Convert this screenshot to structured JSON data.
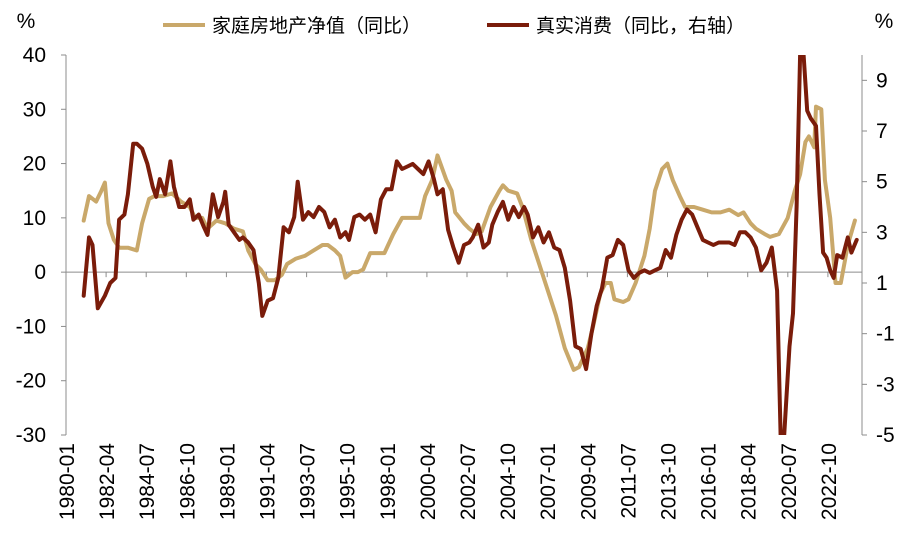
{
  "chart_data": {
    "type": "line",
    "left_axis_unit": "%",
    "right_axis_unit": "%",
    "ylim_left": [
      -30,
      40
    ],
    "ylim_right": [
      -5,
      10
    ],
    "yticks_left": [
      40,
      30,
      20,
      10,
      0,
      -10,
      -20,
      -30
    ],
    "yticks_right": [
      9,
      7,
      5,
      3,
      1,
      -1,
      -3,
      -5
    ],
    "xticks": [
      "1980-01",
      "1982-04",
      "1984-07",
      "1986-10",
      "1989-01",
      "1991-04",
      "1993-07",
      "1995-10",
      "1998-01",
      "2000-04",
      "2002-07",
      "2004-10",
      "2007-01",
      "2009-04",
      "2011-07",
      "2013-10",
      "2016-01",
      "2018-04",
      "2020-07",
      "2022-10"
    ],
    "colors": {
      "net_worth": "#C9A86A",
      "consumption": "#7A1C0A"
    },
    "series": [
      {
        "name": "家庭房地产净值（同比）",
        "axis": "left",
        "points": [
          [
            1981.0,
            9.5
          ],
          [
            1981.3,
            14
          ],
          [
            1981.7,
            13
          ],
          [
            1982.0,
            15
          ],
          [
            1982.2,
            16.5
          ],
          [
            1982.4,
            9
          ],
          [
            1982.7,
            6
          ],
          [
            1983.0,
            4.5
          ],
          [
            1983.5,
            4.5
          ],
          [
            1984.0,
            4
          ],
          [
            1984.3,
            9
          ],
          [
            1984.7,
            13.5
          ],
          [
            1985.0,
            14
          ],
          [
            1985.5,
            14
          ],
          [
            1986.0,
            14.5
          ],
          [
            1986.5,
            13
          ],
          [
            1987.0,
            12
          ],
          [
            1987.3,
            10
          ],
          [
            1987.7,
            10
          ],
          [
            1988.0,
            8
          ],
          [
            1988.5,
            9.5
          ],
          [
            1989.0,
            9
          ],
          [
            1989.5,
            8
          ],
          [
            1990.0,
            7.5
          ],
          [
            1990.3,
            4
          ],
          [
            1990.7,
            1.5
          ],
          [
            1991.0,
            0.5
          ],
          [
            1991.4,
            -1.5
          ],
          [
            1991.8,
            -1.5
          ],
          [
            1992.2,
            -0.5
          ],
          [
            1992.5,
            1.5
          ],
          [
            1993.0,
            2.5
          ],
          [
            1993.5,
            3
          ],
          [
            1994.0,
            4
          ],
          [
            1994.5,
            5
          ],
          [
            1994.8,
            5
          ],
          [
            1995.2,
            4
          ],
          [
            1995.5,
            3
          ],
          [
            1995.8,
            -1
          ],
          [
            1996.2,
            0
          ],
          [
            1996.5,
            0
          ],
          [
            1996.8,
            0.5
          ],
          [
            1997.2,
            3.5
          ],
          [
            1997.5,
            3.5
          ],
          [
            1998.0,
            3.5
          ],
          [
            1998.5,
            7
          ],
          [
            1999.0,
            10
          ],
          [
            1999.5,
            10
          ],
          [
            2000.0,
            10
          ],
          [
            2000.3,
            14
          ],
          [
            2000.7,
            17
          ],
          [
            2001.0,
            21.5
          ],
          [
            2001.5,
            17
          ],
          [
            2001.8,
            15
          ],
          [
            2002.0,
            11
          ],
          [
            2002.5,
            9
          ],
          [
            2002.8,
            8
          ],
          [
            2003.2,
            7
          ],
          [
            2003.5,
            7.5
          ],
          [
            2004.0,
            12
          ],
          [
            2004.5,
            15
          ],
          [
            2004.7,
            16
          ],
          [
            2005.0,
            15
          ],
          [
            2005.5,
            14.5
          ],
          [
            2005.8,
            12
          ],
          [
            2006.3,
            6
          ],
          [
            2006.7,
            2
          ],
          [
            2007.2,
            -3
          ],
          [
            2007.7,
            -8
          ],
          [
            2008.2,
            -14
          ],
          [
            2008.7,
            -18
          ],
          [
            2009.0,
            -17.5
          ],
          [
            2009.5,
            -14
          ],
          [
            2009.8,
            -10
          ],
          [
            2010.2,
            -4
          ],
          [
            2010.5,
            -2
          ],
          [
            2010.8,
            -2
          ],
          [
            2011.0,
            -5
          ],
          [
            2011.5,
            -5.5
          ],
          [
            2011.8,
            -5
          ],
          [
            2012.2,
            -2
          ],
          [
            2012.7,
            3
          ],
          [
            2013.0,
            8
          ],
          [
            2013.3,
            15
          ],
          [
            2013.7,
            19
          ],
          [
            2014.0,
            20
          ],
          [
            2014.3,
            17
          ],
          [
            2014.7,
            14
          ],
          [
            2015.0,
            12
          ],
          [
            2015.5,
            12
          ],
          [
            2016.0,
            11.5
          ],
          [
            2016.5,
            11
          ],
          [
            2017.0,
            11
          ],
          [
            2017.5,
            11.5
          ],
          [
            2018.0,
            10.5
          ],
          [
            2018.3,
            11
          ],
          [
            2018.7,
            9
          ],
          [
            2019.0,
            8
          ],
          [
            2019.5,
            7
          ],
          [
            2019.8,
            6.5
          ],
          [
            2020.3,
            7
          ],
          [
            2020.8,
            10
          ],
          [
            2021.2,
            15
          ],
          [
            2021.5,
            18
          ],
          [
            2021.8,
            24
          ],
          [
            2022.0,
            25
          ],
          [
            2022.3,
            23
          ],
          [
            2022.4,
            30.5
          ],
          [
            2022.7,
            30
          ],
          [
            2022.9,
            17
          ],
          [
            2023.2,
            10
          ],
          [
            2023.5,
            -2
          ],
          [
            2023.8,
            -2
          ],
          [
            2024.2,
            5
          ],
          [
            2024.6,
            9.5
          ]
        ]
      },
      {
        "name": "真实消费（同比，右轴）",
        "axis": "right",
        "points": [
          [
            1981.0,
            0.5
          ],
          [
            1981.3,
            2.8
          ],
          [
            1981.5,
            2.5
          ],
          [
            1981.8,
            0
          ],
          [
            1982.2,
            0.5
          ],
          [
            1982.5,
            1
          ],
          [
            1982.8,
            1.2
          ],
          [
            1983.0,
            3.5
          ],
          [
            1983.3,
            3.7
          ],
          [
            1983.5,
            4.5
          ],
          [
            1983.8,
            6.5
          ],
          [
            1984.0,
            6.5
          ],
          [
            1984.3,
            6.3
          ],
          [
            1984.6,
            5.7
          ],
          [
            1984.9,
            4.8
          ],
          [
            1985.1,
            4.4
          ],
          [
            1985.3,
            5.1
          ],
          [
            1985.6,
            4.5
          ],
          [
            1985.9,
            5.8
          ],
          [
            1986.1,
            4.8
          ],
          [
            1986.4,
            4
          ],
          [
            1986.7,
            4
          ],
          [
            1987.0,
            4.3
          ],
          [
            1987.2,
            3.5
          ],
          [
            1987.5,
            3.7
          ],
          [
            1987.8,
            3.2
          ],
          [
            1988.0,
            2.9
          ],
          [
            1988.3,
            4.5
          ],
          [
            1988.6,
            3.6
          ],
          [
            1988.9,
            4.2
          ],
          [
            1989.0,
            4.6
          ],
          [
            1989.2,
            3.3
          ],
          [
            1989.5,
            3
          ],
          [
            1989.8,
            2.7
          ],
          [
            1990.0,
            2.8
          ],
          [
            1990.3,
            2.6
          ],
          [
            1990.6,
            2.3
          ],
          [
            1990.9,
            1
          ],
          [
            1991.1,
            -0.3
          ],
          [
            1991.4,
            0.3
          ],
          [
            1991.7,
            0.4
          ],
          [
            1992.0,
            1.2
          ],
          [
            1992.3,
            3.2
          ],
          [
            1992.6,
            3
          ],
          [
            1992.9,
            3.6
          ],
          [
            1993.1,
            5
          ],
          [
            1993.4,
            3.5
          ],
          [
            1993.7,
            3.8
          ],
          [
            1994.0,
            3.6
          ],
          [
            1994.3,
            4
          ],
          [
            1994.6,
            3.8
          ],
          [
            1994.9,
            3.2
          ],
          [
            1995.2,
            3.5
          ],
          [
            1995.5,
            2.8
          ],
          [
            1995.8,
            3
          ],
          [
            1996.0,
            2.7
          ],
          [
            1996.3,
            3.6
          ],
          [
            1996.6,
            3.7
          ],
          [
            1996.9,
            3.5
          ],
          [
            1997.2,
            3.7
          ],
          [
            1997.5,
            3.0
          ],
          [
            1997.8,
            4.3
          ],
          [
            1998.1,
            4.7
          ],
          [
            1998.4,
            4.7
          ],
          [
            1998.7,
            5.8
          ],
          [
            1999.0,
            5.5
          ],
          [
            1999.3,
            5.6
          ],
          [
            1999.6,
            5.7
          ],
          [
            1999.9,
            5.5
          ],
          [
            2000.2,
            5.3
          ],
          [
            2000.5,
            5.8
          ],
          [
            2000.8,
            5.1
          ],
          [
            2001.0,
            4.5
          ],
          [
            2001.3,
            4.7
          ],
          [
            2001.6,
            3.1
          ],
          [
            2001.9,
            2.4
          ],
          [
            2002.2,
            1.8
          ],
          [
            2002.5,
            2.5
          ],
          [
            2002.8,
            2.6
          ],
          [
            2003.0,
            2.8
          ],
          [
            2003.3,
            3.3
          ],
          [
            2003.6,
            2.4
          ],
          [
            2003.9,
            2.6
          ],
          [
            2004.1,
            3.3
          ],
          [
            2004.4,
            3.8
          ],
          [
            2004.7,
            4.2
          ],
          [
            2005.0,
            3.5
          ],
          [
            2005.3,
            4
          ],
          [
            2005.6,
            3.6
          ],
          [
            2005.9,
            4
          ],
          [
            2006.1,
            3.7
          ],
          [
            2006.4,
            2.8
          ],
          [
            2006.7,
            3.2
          ],
          [
            2007.0,
            2.6
          ],
          [
            2007.3,
            3
          ],
          [
            2007.6,
            2.4
          ],
          [
            2007.9,
            2.3
          ],
          [
            2008.2,
            1.6
          ],
          [
            2008.5,
            0.3
          ],
          [
            2008.8,
            -1.5
          ],
          [
            2009.1,
            -1.6
          ],
          [
            2009.4,
            -2.4
          ],
          [
            2009.7,
            -1
          ],
          [
            2010.0,
            0.1
          ],
          [
            2010.3,
            0.8
          ],
          [
            2010.6,
            2
          ],
          [
            2010.9,
            2.1
          ],
          [
            2011.2,
            2.7
          ],
          [
            2011.5,
            2.5
          ],
          [
            2011.8,
            1.5
          ],
          [
            2012.1,
            1.2
          ],
          [
            2012.4,
            1.4
          ],
          [
            2012.7,
            1.5
          ],
          [
            2013.0,
            1.4
          ],
          [
            2013.3,
            1.5
          ],
          [
            2013.6,
            1.6
          ],
          [
            2013.9,
            2.3
          ],
          [
            2014.2,
            2.0
          ],
          [
            2014.5,
            2.9
          ],
          [
            2014.8,
            3.5
          ],
          [
            2015.1,
            3.9
          ],
          [
            2015.4,
            3.7
          ],
          [
            2015.7,
            3.2
          ],
          [
            2016.0,
            2.7
          ],
          [
            2016.3,
            2.6
          ],
          [
            2016.6,
            2.5
          ],
          [
            2016.9,
            2.6
          ],
          [
            2017.2,
            2.6
          ],
          [
            2017.5,
            2.6
          ],
          [
            2017.8,
            2.5
          ],
          [
            2018.1,
            3
          ],
          [
            2018.4,
            3
          ],
          [
            2018.7,
            2.8
          ],
          [
            2019.0,
            2.4
          ],
          [
            2019.3,
            1.5
          ],
          [
            2019.6,
            1.8
          ],
          [
            2019.9,
            2.4
          ],
          [
            2020.2,
            0.7
          ],
          [
            2020.4,
            -5
          ],
          [
            2020.6,
            -5
          ],
          [
            2020.9,
            -1.5
          ],
          [
            2021.1,
            -0.2
          ],
          [
            2021.3,
            4
          ],
          [
            2021.5,
            10
          ],
          [
            2021.7,
            10
          ],
          [
            2021.9,
            7.8
          ],
          [
            2022.1,
            7.5
          ],
          [
            2022.4,
            7.2
          ],
          [
            2022.6,
            4.5
          ],
          [
            2022.8,
            2.2
          ],
          [
            2023.0,
            2.0
          ],
          [
            2023.2,
            1.5
          ],
          [
            2023.4,
            1.2
          ],
          [
            2023.6,
            2.1
          ],
          [
            2023.9,
            2.0
          ],
          [
            2024.2,
            2.8
          ],
          [
            2024.4,
            2.2
          ],
          [
            2024.7,
            2.7
          ]
        ]
      }
    ]
  }
}
